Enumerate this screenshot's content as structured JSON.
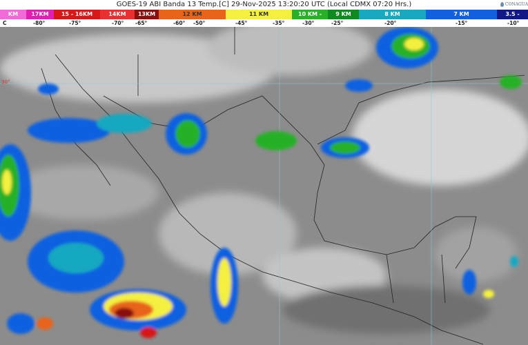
{
  "header": {
    "title": "GOES-19 ABI Banda 13 Temp.[C] 29-Nov-2025 13:20:20 UTC (Local CDMX  07:20 Hrs.)",
    "logo_text": "CONAGUA"
  },
  "color_scale": {
    "segments": [
      {
        "label": "KM",
        "color": "#f06ad8"
      },
      {
        "label": "17KM",
        "color": "#e020b0"
      },
      {
        "label": "15 - 16KM",
        "color": "#d81818"
      },
      {
        "label": "14KM",
        "color": "#e83030"
      },
      {
        "label": "13KM",
        "color": "#8a1010"
      },
      {
        "label": "12 KM",
        "color": "#e8641a"
      },
      {
        "label": "11 KM",
        "color": "#f4f040"
      },
      {
        "label": "10 KM -",
        "color": "#28b028"
      },
      {
        "label": "9 KM",
        "color": "#108a20"
      },
      {
        "label": "8 KM",
        "color": "#18a8c0"
      },
      {
        "label": "7 KM",
        "color": "#1060e0"
      },
      {
        "label": "3.5 -",
        "color": "#101888"
      }
    ],
    "temperatures": [
      "C",
      "-80°",
      "-75°",
      "-70°",
      "-65°",
      "-60°",
      "-50°",
      "-45°",
      "-35°",
      "-30°",
      "-25°",
      "-20°",
      "-15°",
      "-10°"
    ]
  },
  "map": {
    "grid_labels": [
      "30°"
    ],
    "grid_color": "#7fd0d0",
    "border_color": "#222222"
  }
}
